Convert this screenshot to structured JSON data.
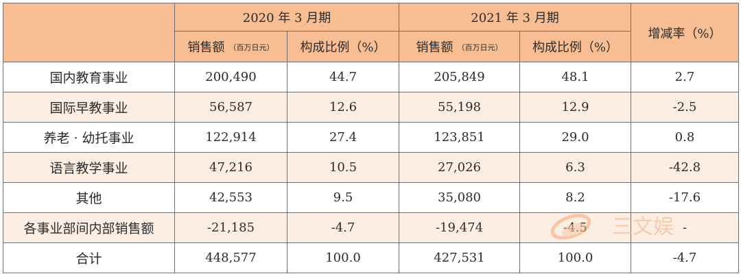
{
  "table": {
    "header": {
      "group_2020": "2020 年 3 月期",
      "group_2021": "2021 年 3 月期",
      "change_rate": "增减率（%）",
      "sales_label": "销售额",
      "sales_unit": "（百万日元）",
      "ratio_label": "构成比例（%）"
    },
    "rows": [
      {
        "name": "国内教育事业",
        "sales_2020": "200,490",
        "ratio_2020": "44.7",
        "sales_2021": "205,849",
        "ratio_2021": "48.1",
        "change": "2.7"
      },
      {
        "name": "国际早教事业",
        "sales_2020": "56,587",
        "ratio_2020": "12.6",
        "sales_2021": "55,198",
        "ratio_2021": "12.9",
        "change": "-2.5"
      },
      {
        "name": "养老 · 幼托事业",
        "sales_2020": "122,914",
        "ratio_2020": "27.4",
        "sales_2021": "123,851",
        "ratio_2021": "29.0",
        "change": "0.8"
      },
      {
        "name": "语言教学事业",
        "sales_2020": "47,216",
        "ratio_2020": "10.5",
        "sales_2021": "27,026",
        "ratio_2021": "6.3",
        "change": "-42.8"
      },
      {
        "name": "其他",
        "sales_2020": "42,553",
        "ratio_2020": "9.5",
        "sales_2021": "35,080",
        "ratio_2021": "8.2",
        "change": "-17.6"
      },
      {
        "name": "各事业部间内部销售额",
        "sales_2020": "-21,185",
        "ratio_2020": "-4.7",
        "sales_2021": "-19,474",
        "ratio_2021": "-4.5",
        "change": "-"
      },
      {
        "name": "合计",
        "sales_2020": "448,577",
        "ratio_2020": "100.0",
        "sales_2021": "427,531",
        "ratio_2021": "100.0",
        "change": "-4.7"
      }
    ]
  },
  "watermark": {
    "text": "三文娱"
  },
  "colors": {
    "header_bg": "#f7bd93",
    "alt_row_bg": "#fdeee3",
    "border": "#6e6e6e"
  }
}
